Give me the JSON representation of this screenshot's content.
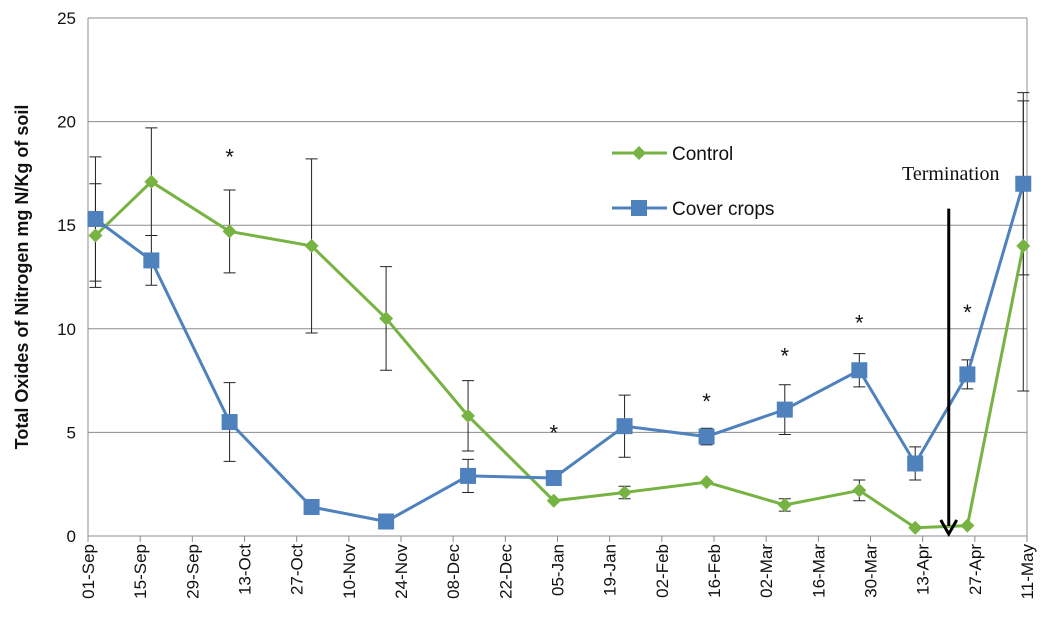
{
  "chart_data": {
    "type": "line",
    "y_label": "Total Oxides of Nitrogen mg N/Kg of soil",
    "xlim": [
      0,
      252
    ],
    "xticks": [
      {
        "value": 0,
        "label": "01-Sep"
      },
      {
        "value": 14,
        "label": "15-Sep"
      },
      {
        "value": 28,
        "label": "29-Sep"
      },
      {
        "value": 42,
        "label": "13-Oct"
      },
      {
        "value": 56,
        "label": "27-Oct"
      },
      {
        "value": 70,
        "label": "10-Nov"
      },
      {
        "value": 84,
        "label": "24-Nov"
      },
      {
        "value": 98,
        "label": "08-Dec"
      },
      {
        "value": 112,
        "label": "22-Dec"
      },
      {
        "value": 126,
        "label": "05-Jan"
      },
      {
        "value": 140,
        "label": "19-Jan"
      },
      {
        "value": 154,
        "label": "02-Feb"
      },
      {
        "value": 168,
        "label": "16-Feb"
      },
      {
        "value": 182,
        "label": "02-Mar"
      },
      {
        "value": 196,
        "label": "16-Mar"
      },
      {
        "value": 210,
        "label": "30-Mar"
      },
      {
        "value": 224,
        "label": "13-Apr"
      },
      {
        "value": 238,
        "label": "27-Apr"
      },
      {
        "value": 252,
        "label": "11-May"
      }
    ],
    "ylim": [
      0,
      25
    ],
    "yticks": [
      0,
      5,
      10,
      15,
      20,
      25
    ],
    "grid": true,
    "legend": "upper right",
    "x": [
      2,
      17,
      38,
      60,
      80,
      102,
      125,
      144,
      166,
      187,
      207,
      222,
      236,
      251
    ],
    "series": [
      {
        "name": "Control",
        "color": "#77b343",
        "marker": "diamond",
        "values": [
          14.5,
          17.1,
          14.7,
          14.0,
          10.5,
          5.8,
          1.7,
          2.1,
          2.6,
          1.5,
          2.2,
          0.4,
          0.5,
          14.0
        ],
        "errors": [
          2.5,
          2.6,
          2.0,
          4.2,
          2.5,
          1.7,
          null,
          0.3,
          null,
          0.3,
          0.5,
          null,
          null,
          7.0
        ]
      },
      {
        "name": "Cover crops",
        "color": "#4f81bd",
        "marker": "square",
        "values": [
          15.3,
          13.3,
          5.5,
          1.4,
          0.7,
          2.9,
          2.8,
          5.3,
          4.8,
          6.1,
          8.0,
          3.5,
          7.8,
          17.0
        ],
        "errors": [
          3.0,
          1.2,
          1.9,
          null,
          null,
          0.8,
          null,
          1.5,
          0.4,
          1.2,
          0.8,
          0.8,
          0.7,
          4.4
        ]
      }
    ],
    "annotations": [
      {
        "text": "*",
        "x": 38,
        "y": 18.5
      },
      {
        "text": "*",
        "x": 125,
        "y": 5.2
      },
      {
        "text": "*",
        "x": 166,
        "y": 6.7
      },
      {
        "text": "*",
        "x": 187,
        "y": 8.9
      },
      {
        "text": "*",
        "x": 207,
        "y": 10.5
      },
      {
        "text": "*",
        "x": 236,
        "y": 11.0
      }
    ],
    "termination": {
      "text": "Termination",
      "x": 231,
      "y": 15.8
    }
  }
}
